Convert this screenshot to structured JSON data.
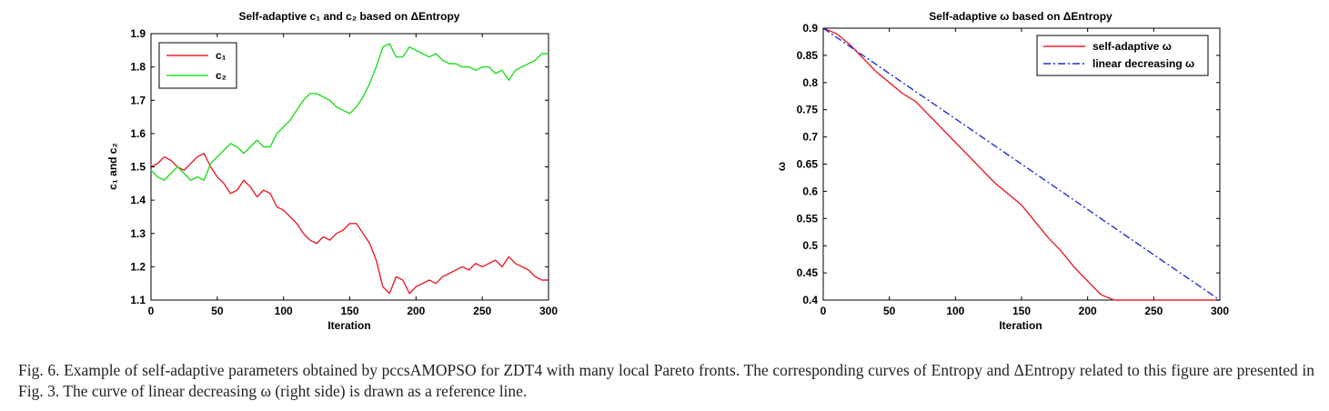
{
  "figure": {
    "caption": "Fig. 6.   Example of self-adaptive parameters obtained by pccsAMOPSO for ZDT4 with many local Pareto fronts. The corresponding curves of Entropy and ΔEntropy related to this figure are presented in Fig. 3. The curve of linear decreasing ω (right side) is drawn as a reference line."
  },
  "chart_data": [
    {
      "type": "line",
      "title": "Self-adaptive c₁ and c₂ based on ΔEntropy",
      "xlabel": "Iteration",
      "ylabel": "c₁ and c₂",
      "xlim": [
        0,
        300
      ],
      "ylim": [
        1.1,
        1.9
      ],
      "xticks": [
        0,
        50,
        100,
        150,
        200,
        250,
        300
      ],
      "yticks": [
        1.1,
        1.2,
        1.3,
        1.4,
        1.5,
        1.6,
        1.7,
        1.8,
        1.9
      ],
      "grid": false,
      "legend_position": "top-left",
      "series": [
        {
          "name": "c₁",
          "color": "#e8202a",
          "x": [
            0,
            5,
            10,
            15,
            20,
            25,
            30,
            35,
            40,
            45,
            50,
            55,
            60,
            65,
            70,
            75,
            80,
            85,
            90,
            95,
            100,
            105,
            110,
            115,
            120,
            125,
            130,
            135,
            140,
            145,
            150,
            155,
            160,
            165,
            170,
            175,
            180,
            185,
            190,
            195,
            200,
            205,
            210,
            215,
            220,
            225,
            230,
            235,
            240,
            245,
            250,
            255,
            260,
            265,
            270,
            275,
            280,
            285,
            290,
            295,
            300
          ],
          "y": [
            1.5,
            1.51,
            1.53,
            1.52,
            1.5,
            1.49,
            1.51,
            1.53,
            1.54,
            1.5,
            1.47,
            1.45,
            1.42,
            1.43,
            1.46,
            1.44,
            1.41,
            1.43,
            1.42,
            1.38,
            1.37,
            1.35,
            1.33,
            1.3,
            1.28,
            1.27,
            1.29,
            1.28,
            1.3,
            1.31,
            1.33,
            1.33,
            1.3,
            1.27,
            1.22,
            1.14,
            1.12,
            1.17,
            1.16,
            1.12,
            1.14,
            1.15,
            1.16,
            1.15,
            1.17,
            1.18,
            1.19,
            1.2,
            1.19,
            1.21,
            1.2,
            1.21,
            1.22,
            1.2,
            1.23,
            1.21,
            1.2,
            1.19,
            1.17,
            1.16,
            1.16
          ]
        },
        {
          "name": "c₂",
          "color": "#22dd22",
          "x": [
            0,
            5,
            10,
            15,
            20,
            25,
            30,
            35,
            40,
            45,
            50,
            55,
            60,
            65,
            70,
            75,
            80,
            85,
            90,
            95,
            100,
            105,
            110,
            115,
            120,
            125,
            130,
            135,
            140,
            145,
            150,
            155,
            160,
            165,
            170,
            175,
            180,
            185,
            190,
            195,
            200,
            205,
            210,
            215,
            220,
            225,
            230,
            235,
            240,
            245,
            250,
            255,
            260,
            265,
            270,
            275,
            280,
            285,
            290,
            295,
            300
          ],
          "y": [
            1.49,
            1.47,
            1.46,
            1.48,
            1.5,
            1.48,
            1.46,
            1.47,
            1.46,
            1.51,
            1.53,
            1.55,
            1.57,
            1.56,
            1.54,
            1.56,
            1.58,
            1.56,
            1.56,
            1.6,
            1.62,
            1.64,
            1.67,
            1.7,
            1.72,
            1.72,
            1.71,
            1.7,
            1.68,
            1.67,
            1.66,
            1.68,
            1.71,
            1.75,
            1.8,
            1.86,
            1.87,
            1.83,
            1.83,
            1.86,
            1.85,
            1.84,
            1.83,
            1.84,
            1.82,
            1.81,
            1.81,
            1.8,
            1.8,
            1.79,
            1.8,
            1.8,
            1.78,
            1.79,
            1.76,
            1.79,
            1.8,
            1.81,
            1.82,
            1.84,
            1.84
          ]
        }
      ]
    },
    {
      "type": "line",
      "title": "Self-adaptive ω based on ΔEntropy",
      "xlabel": "Iteration",
      "ylabel": "ω",
      "xlim": [
        0,
        300
      ],
      "ylim": [
        0.4,
        0.9
      ],
      "xticks": [
        0,
        50,
        100,
        150,
        200,
        250,
        300
      ],
      "yticks": [
        0.4,
        0.45,
        0.5,
        0.55,
        0.6,
        0.65,
        0.7,
        0.75,
        0.8,
        0.85,
        0.9
      ],
      "grid": false,
      "legend_position": "top-right",
      "series": [
        {
          "name": "self-adaptive ω",
          "color": "#e8202a",
          "dash": "solid",
          "x": [
            0,
            10,
            20,
            30,
            40,
            50,
            60,
            70,
            80,
            90,
            100,
            110,
            120,
            130,
            140,
            150,
            160,
            170,
            180,
            190,
            200,
            210,
            220,
            230,
            240,
            250,
            260,
            270,
            280,
            290,
            300
          ],
          "y": [
            0.9,
            0.89,
            0.87,
            0.845,
            0.82,
            0.8,
            0.78,
            0.765,
            0.74,
            0.715,
            0.69,
            0.665,
            0.64,
            0.615,
            0.595,
            0.575,
            0.545,
            0.515,
            0.49,
            0.46,
            0.435,
            0.41,
            0.4,
            0.4,
            0.4,
            0.4,
            0.4,
            0.4,
            0.4,
            0.4,
            0.4
          ]
        },
        {
          "name": "linear decreasing ω",
          "color": "#1f2fd6",
          "dash": "dashdot",
          "x": [
            0,
            300
          ],
          "y": [
            0.9,
            0.4
          ]
        }
      ]
    }
  ]
}
